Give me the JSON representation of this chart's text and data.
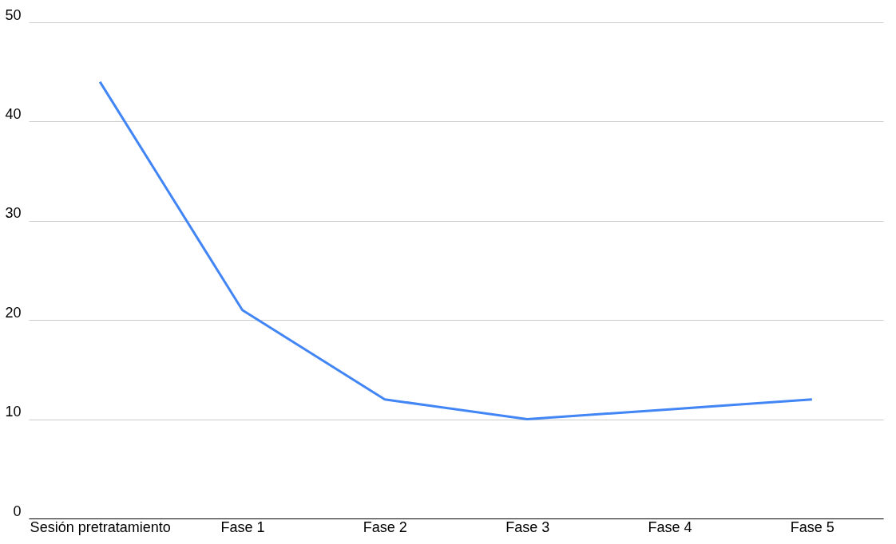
{
  "chart_data": {
    "type": "line",
    "categories": [
      "Sesión pretratamiento",
      "Fase 1",
      "Fase 2",
      "Fase 3",
      "Fase 4",
      "Fase 5"
    ],
    "series": [
      {
        "color": "#4285f4",
        "values": [
          44,
          21,
          12,
          10,
          11,
          12
        ]
      }
    ],
    "ylim": [
      0,
      50
    ],
    "yticks": [
      0,
      10,
      20,
      30,
      40,
      50
    ],
    "grid": "y",
    "legend": false
  }
}
